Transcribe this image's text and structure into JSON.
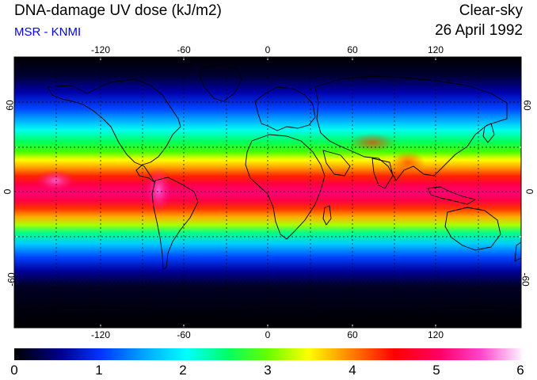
{
  "header": {
    "title": "DNA-damage UV dose (kJ/m2)",
    "subtitle": "MSR - KNMI",
    "condition": "Clear-sky",
    "date": "26 April 1992"
  },
  "map": {
    "projection": "equirectangular",
    "lon_range": [
      -180,
      180
    ],
    "lat_range": [
      -90,
      90
    ],
    "lon_ticks": [
      "-120",
      "-60",
      "0",
      "60",
      "120"
    ],
    "lat_ticks": [
      "60",
      "0",
      "-60"
    ],
    "gridlines": "dashed",
    "coastlines": true
  },
  "colorbar": {
    "min": 0,
    "max": 6,
    "labels": [
      "0",
      "1",
      "2",
      "3",
      "4",
      "5",
      "6"
    ],
    "colors": [
      "#000000",
      "#0000cc",
      "#00aaff",
      "#00ffff",
      "#00ff66",
      "#66ff00",
      "#ffff00",
      "#ff8800",
      "#ff0000",
      "#ff0066",
      "#ff44cc",
      "#ffccff"
    ]
  },
  "chart_data": {
    "type": "heatmap",
    "title": "DNA-damage UV dose (kJ/m2)",
    "subtitle": "MSR - KNMI",
    "condition": "Clear-sky",
    "date": "26 April 1992",
    "variable": "DNA-damage UV dose",
    "units": "kJ/m2",
    "value_range": [
      0,
      6
    ],
    "latitude_profile": {
      "lat": [
        90,
        75,
        60,
        45,
        30,
        15,
        0,
        -15,
        -30,
        -45,
        -60,
        -75,
        -90
      ],
      "dose": [
        0.2,
        0.6,
        1.3,
        2.3,
        3.2,
        4.4,
        4.9,
        4.4,
        3.0,
        1.4,
        0.5,
        0.1,
        0.0
      ]
    }
  }
}
